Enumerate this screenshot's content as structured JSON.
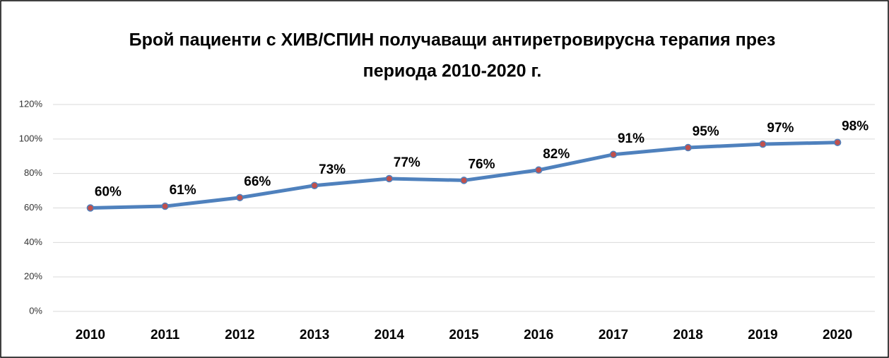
{
  "chart_data": {
    "type": "line",
    "title": [
      "Брой пациенти с ХИВ/СПИН получаващи антиретровирусна терапия през",
      "периода 2010-2020 г."
    ],
    "categories": [
      "2010",
      "2011",
      "2012",
      "2013",
      "2014",
      "2015",
      "2016",
      "2017",
      "2018",
      "2019",
      "2020"
    ],
    "series": [
      {
        "color": "#4f81bd",
        "marker_color": "#c0504d",
        "values": [
          60,
          61,
          66,
          73,
          77,
          76,
          82,
          91,
          95,
          97,
          98
        ],
        "value_labels": [
          "60%",
          "61%",
          "66%",
          "73%",
          "77%",
          "76%",
          "82%",
          "91%",
          "95%",
          "97%",
          "98%"
        ]
      }
    ],
    "ylim": [
      0,
      120
    ],
    "yticks": [
      {
        "value": 0,
        "label": "0%"
      },
      {
        "value": 20,
        "label": "20%"
      },
      {
        "value": 40,
        "label": "40%"
      },
      {
        "value": 60,
        "label": "60%"
      },
      {
        "value": 80,
        "label": "80%"
      },
      {
        "value": 100,
        "label": "100%"
      },
      {
        "value": 120,
        "label": "120%"
      }
    ],
    "grid": true
  }
}
